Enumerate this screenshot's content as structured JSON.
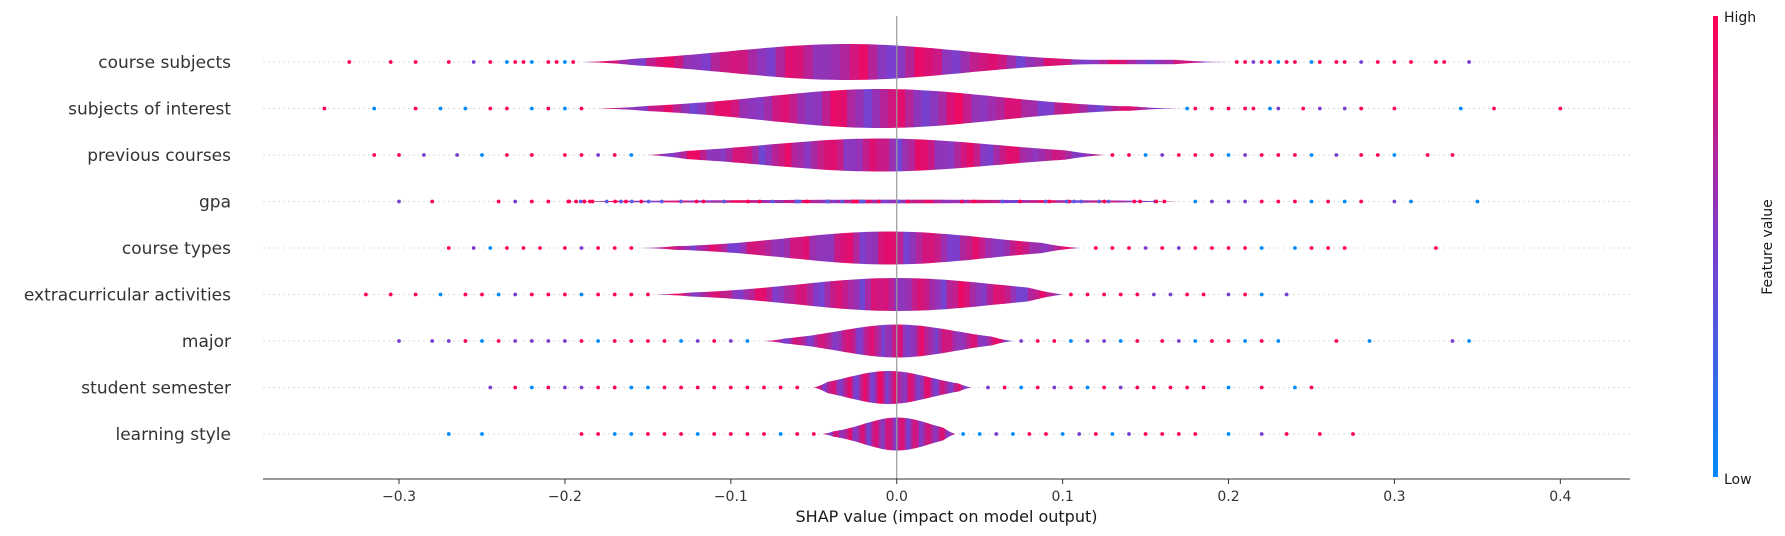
{
  "chart_data": {
    "type": "violin",
    "title": "",
    "xlabel": "SHAP value (impact on model output)",
    "xlim": [
      -0.382,
      0.442
    ],
    "xticks": [
      -0.3,
      -0.2,
      -0.1,
      0.0,
      0.1,
      0.2,
      0.3,
      0.4
    ],
    "xtick_labels": [
      "−0.3",
      "−0.2",
      "−0.1",
      "0.0",
      "0.1",
      "0.2",
      "0.3",
      "0.4"
    ],
    "colorbar": {
      "label": "Feature value",
      "high_label": "High",
      "low_label": "Low",
      "high_color": "#ff0052",
      "low_color": "#008bfb"
    },
    "features": [
      {
        "name": "course subjects",
        "min": -0.19,
        "max": 0.2,
        "peak_width": 0.6,
        "center": -0.03,
        "spread": 0.07,
        "outliers": [
          -0.33,
          -0.305,
          -0.29,
          -0.27,
          -0.255,
          -0.245,
          -0.235,
          -0.23,
          -0.225,
          -0.22,
          -0.21,
          -0.205,
          -0.2,
          -0.195,
          0.205,
          0.21,
          0.215,
          0.22,
          0.225,
          0.23,
          0.235,
          0.24,
          0.25,
          0.255,
          0.265,
          0.27,
          0.28,
          0.29,
          0.3,
          0.31,
          0.325,
          0.33,
          0.345
        ]
      },
      {
        "name": "subjects of interest",
        "min": -0.18,
        "max": 0.17,
        "peak_width": 0.65,
        "center": -0.01,
        "spread": 0.07,
        "outliers": [
          -0.345,
          -0.315,
          -0.29,
          -0.275,
          -0.26,
          -0.245,
          -0.235,
          -0.22,
          -0.21,
          -0.2,
          -0.19,
          0.175,
          0.18,
          0.19,
          0.2,
          0.21,
          0.215,
          0.225,
          0.23,
          0.245,
          0.255,
          0.27,
          0.28,
          0.3,
          0.34,
          0.36,
          0.4
        ]
      },
      {
        "name": "previous courses",
        "min": -0.15,
        "max": 0.125,
        "peak_width": 0.55,
        "center": -0.01,
        "spread": 0.07,
        "outliers": [
          -0.315,
          -0.3,
          -0.285,
          -0.265,
          -0.25,
          -0.235,
          -0.22,
          -0.2,
          -0.19,
          -0.18,
          -0.17,
          -0.16,
          0.13,
          0.14,
          0.15,
          0.16,
          0.17,
          0.18,
          0.19,
          0.2,
          0.21,
          0.22,
          0.23,
          0.24,
          0.25,
          0.265,
          0.28,
          0.29,
          0.3,
          0.32,
          0.335
        ]
      },
      {
        "name": "gpa",
        "min": -0.2,
        "max": 0.17,
        "peak_width": 0.06,
        "center": 0.0,
        "spread": 0.12,
        "outliers": [
          -0.3,
          -0.28,
          -0.24,
          -0.23,
          -0.22,
          -0.21,
          0.18,
          0.19,
          0.2,
          0.21,
          0.22,
          0.23,
          0.24,
          0.25,
          0.26,
          0.27,
          0.28,
          0.3,
          0.31,
          0.35
        ]
      },
      {
        "name": "course types",
        "min": -0.155,
        "max": 0.11,
        "peak_width": 0.55,
        "center": -0.005,
        "spread": 0.06,
        "outliers": [
          -0.27,
          -0.255,
          -0.245,
          -0.235,
          -0.225,
          -0.215,
          -0.2,
          -0.19,
          -0.18,
          -0.17,
          -0.16,
          0.12,
          0.13,
          0.14,
          0.15,
          0.16,
          0.17,
          0.18,
          0.19,
          0.2,
          0.21,
          0.22,
          0.24,
          0.25,
          0.26,
          0.27,
          0.325
        ]
      },
      {
        "name": "extracurricular activities",
        "min": -0.145,
        "max": 0.1,
        "peak_width": 0.55,
        "center": 0.0,
        "spread": 0.06,
        "outliers": [
          -0.32,
          -0.305,
          -0.29,
          -0.275,
          -0.26,
          -0.25,
          -0.24,
          -0.23,
          -0.22,
          -0.21,
          -0.2,
          -0.19,
          -0.18,
          -0.17,
          -0.16,
          -0.15,
          0.105,
          0.115,
          0.125,
          0.135,
          0.145,
          0.155,
          0.165,
          0.175,
          0.185,
          0.2,
          0.21,
          0.22,
          0.235
        ]
      },
      {
        "name": "major",
        "min": -0.08,
        "max": 0.07,
        "peak_width": 0.55,
        "center": 0.0,
        "spread": 0.035,
        "outliers": [
          -0.3,
          -0.28,
          -0.27,
          -0.26,
          -0.25,
          -0.24,
          -0.23,
          -0.22,
          -0.21,
          -0.2,
          -0.19,
          -0.18,
          -0.17,
          -0.16,
          -0.15,
          -0.14,
          -0.13,
          -0.12,
          -0.11,
          -0.1,
          -0.09,
          0.075,
          0.085,
          0.095,
          0.105,
          0.115,
          0.125,
          0.135,
          0.145,
          0.16,
          0.17,
          0.18,
          0.19,
          0.2,
          0.21,
          0.22,
          0.23,
          0.265,
          0.285,
          0.335,
          0.345
        ]
      },
      {
        "name": "student semester",
        "min": -0.05,
        "max": 0.045,
        "peak_width": 0.55,
        "center": -0.005,
        "spread": 0.025,
        "outliers": [
          -0.245,
          -0.23,
          -0.22,
          -0.21,
          -0.2,
          -0.19,
          -0.18,
          -0.17,
          -0.16,
          -0.15,
          -0.14,
          -0.13,
          -0.12,
          -0.11,
          -0.1,
          -0.09,
          -0.08,
          -0.07,
          -0.06,
          0.055,
          0.065,
          0.075,
          0.085,
          0.095,
          0.105,
          0.115,
          0.125,
          0.135,
          0.145,
          0.155,
          0.165,
          0.175,
          0.185,
          0.2,
          0.22,
          0.24,
          0.25
        ]
      },
      {
        "name": "learning style",
        "min": -0.045,
        "max": 0.035,
        "peak_width": 0.55,
        "center": 0.0,
        "spread": 0.02,
        "outliers": [
          -0.27,
          -0.25,
          -0.19,
          -0.18,
          -0.17,
          -0.16,
          -0.15,
          -0.14,
          -0.13,
          -0.12,
          -0.11,
          -0.1,
          -0.09,
          -0.08,
          -0.07,
          -0.06,
          -0.05,
          0.04,
          0.05,
          0.06,
          0.07,
          0.08,
          0.09,
          0.1,
          0.11,
          0.12,
          0.13,
          0.14,
          0.15,
          0.16,
          0.17,
          0.18,
          0.2,
          0.22,
          0.235,
          0.255,
          0.275
        ]
      }
    ]
  }
}
